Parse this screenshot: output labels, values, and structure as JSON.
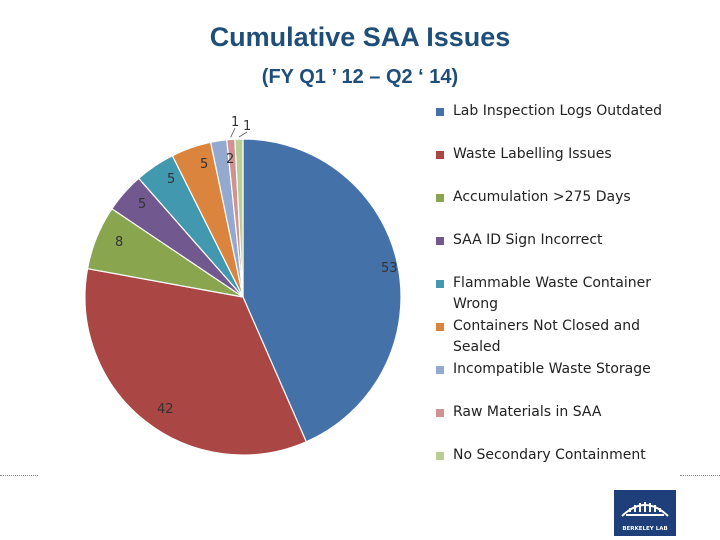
{
  "title": "Cumulative SAA Issues",
  "subtitle": "(FY Q1 ’ 12 – Q2 ‘ 14)",
  "chart_data": {
    "type": "pie",
    "title": "Cumulative SAA Issues",
    "subtitle": "(FY Q1 ’ 12 – Q2 ‘ 14)",
    "legend_position": "right",
    "slices": [
      {
        "label": "Lab Inspection Logs Outdated",
        "value": 53,
        "color": "#4472a8"
      },
      {
        "label": "Waste Labelling Issues",
        "value": 42,
        "color": "#aa4643"
      },
      {
        "label": "Accumulation >275 Days",
        "value": 8,
        "color": "#89a54e"
      },
      {
        "label": "SAA ID Sign Incorrect",
        "value": 5,
        "color": "#71588f"
      },
      {
        "label": "Flammable Waste Container Wrong",
        "value": 5,
        "color": "#4198af"
      },
      {
        "label": "Containers Not Closed and Sealed",
        "value": 5,
        "color": "#db843d"
      },
      {
        "label": "Incompatible Waste Storage",
        "value": 2,
        "color": "#93a9cf"
      },
      {
        "label": "Raw Materials in SAA",
        "value": 1,
        "color": "#d19392"
      },
      {
        "label": "No Secondary Containment",
        "value": 1,
        "color": "#b9cd96"
      }
    ]
  },
  "logo": {
    "text": "BERKELEY LAB"
  }
}
